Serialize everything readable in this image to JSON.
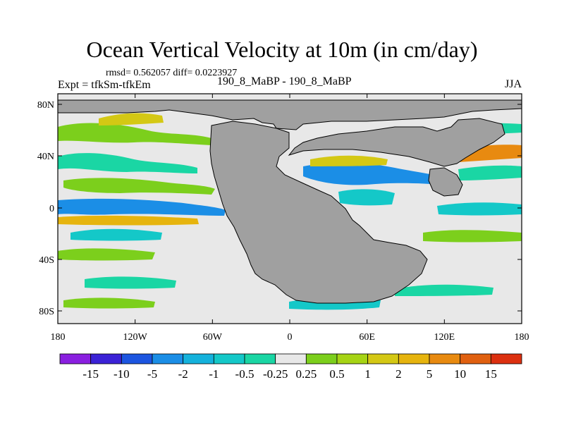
{
  "title": "Ocean Vertical Velocity at 10m (in cm/day)",
  "stats": "rmsd= 0.562057 diff= 0.0223927",
  "expt": "Expt = tfkSm-tfkEm",
  "case": "190_8_MaBP - 190_8_MaBP",
  "season": "JJA",
  "map": {
    "lon_ticks": [
      "180",
      "120W",
      "60W",
      "0",
      "60E",
      "120E",
      "180"
    ],
    "lat_ticks": [
      "80N",
      "40N",
      "0",
      "40S",
      "80S"
    ],
    "land_color": "#a0a0a0",
    "ocean_color": "#e8e8e8"
  },
  "colorbar": {
    "colors": [
      "#8a1fe0",
      "#3b22d6",
      "#1c55e0",
      "#1b8ee6",
      "#14b2dc",
      "#14c8c8",
      "#1ad6a4",
      "#e8e8e8",
      "#7ccf1c",
      "#a6d414",
      "#d4c814",
      "#e6b40e",
      "#e88a10",
      "#e06010",
      "#dc3010"
    ],
    "labels": [
      "-15",
      "-10",
      "-5",
      "-2",
      "-1",
      "-0.5",
      "-0.25",
      "0.25",
      "0.5",
      "1",
      "2",
      "5",
      "10",
      "15"
    ]
  }
}
